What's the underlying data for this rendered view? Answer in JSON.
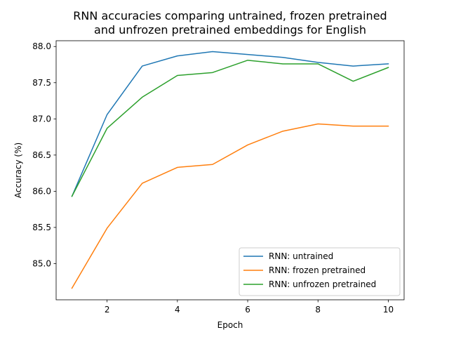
{
  "chart_data": {
    "type": "line",
    "title_lines": [
      "RNN accuracies comparing untrained, frozen pretrained",
      "and unfrozen pretrained embeddings for English"
    ],
    "xlabel": "Epoch",
    "ylabel": "Accuracy (%)",
    "xlim": [
      0.55,
      10.45
    ],
    "ylim": [
      84.5,
      88.08
    ],
    "x_ticks": [
      2,
      4,
      6,
      8,
      10
    ],
    "y_ticks": [
      85.0,
      85.5,
      86.0,
      86.5,
      87.0,
      87.5,
      88.0
    ],
    "y_tick_labels": [
      "85.0",
      "85.5",
      "86.0",
      "86.5",
      "87.0",
      "87.5",
      "88.0"
    ],
    "grid": false,
    "legend_position": "lower-right",
    "x": [
      1,
      2,
      3,
      4,
      5,
      6,
      7,
      8,
      9,
      10
    ],
    "series": [
      {
        "name": "RNN: untrained",
        "color": "#1f77b4",
        "values": [
          85.93,
          87.06,
          87.73,
          87.87,
          87.93,
          87.89,
          87.85,
          87.78,
          87.73,
          87.76
        ]
      },
      {
        "name": "RNN: frozen pretrained",
        "color": "#ff7f0e",
        "values": [
          84.66,
          85.49,
          86.11,
          86.33,
          86.37,
          86.64,
          86.83,
          86.93,
          86.9,
          86.9
        ]
      },
      {
        "name": "RNN: unfrozen pretrained",
        "color": "#2ca02c",
        "values": [
          85.93,
          86.87,
          87.3,
          87.6,
          87.64,
          87.81,
          87.76,
          87.76,
          87.52,
          87.71
        ]
      }
    ]
  }
}
